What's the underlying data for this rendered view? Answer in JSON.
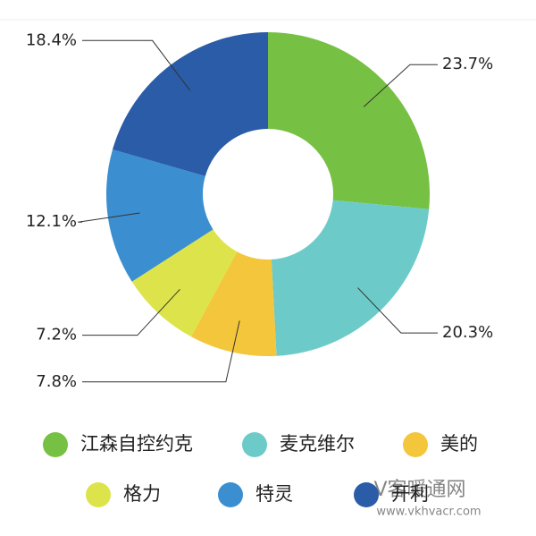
{
  "chart_data": {
    "type": "donut",
    "categories": [
      "江森自控约克",
      "麦克维尔",
      "美的",
      "格力",
      "特灵",
      "开利"
    ],
    "values": [
      23.7,
      20.3,
      7.8,
      7.2,
      12.1,
      18.4
    ],
    "value_labels": [
      "23.7%",
      "20.3%",
      "7.8%",
      "7.2%",
      "12.1%",
      "18.4%"
    ],
    "colors": [
      "#76c043",
      "#6ccbc8",
      "#f3c63b",
      "#dde44b",
      "#3b8fd0",
      "#2b5ca8"
    ]
  },
  "watermark": {
    "title": "V客暖通网",
    "url": "www.vkhvacr.com"
  }
}
